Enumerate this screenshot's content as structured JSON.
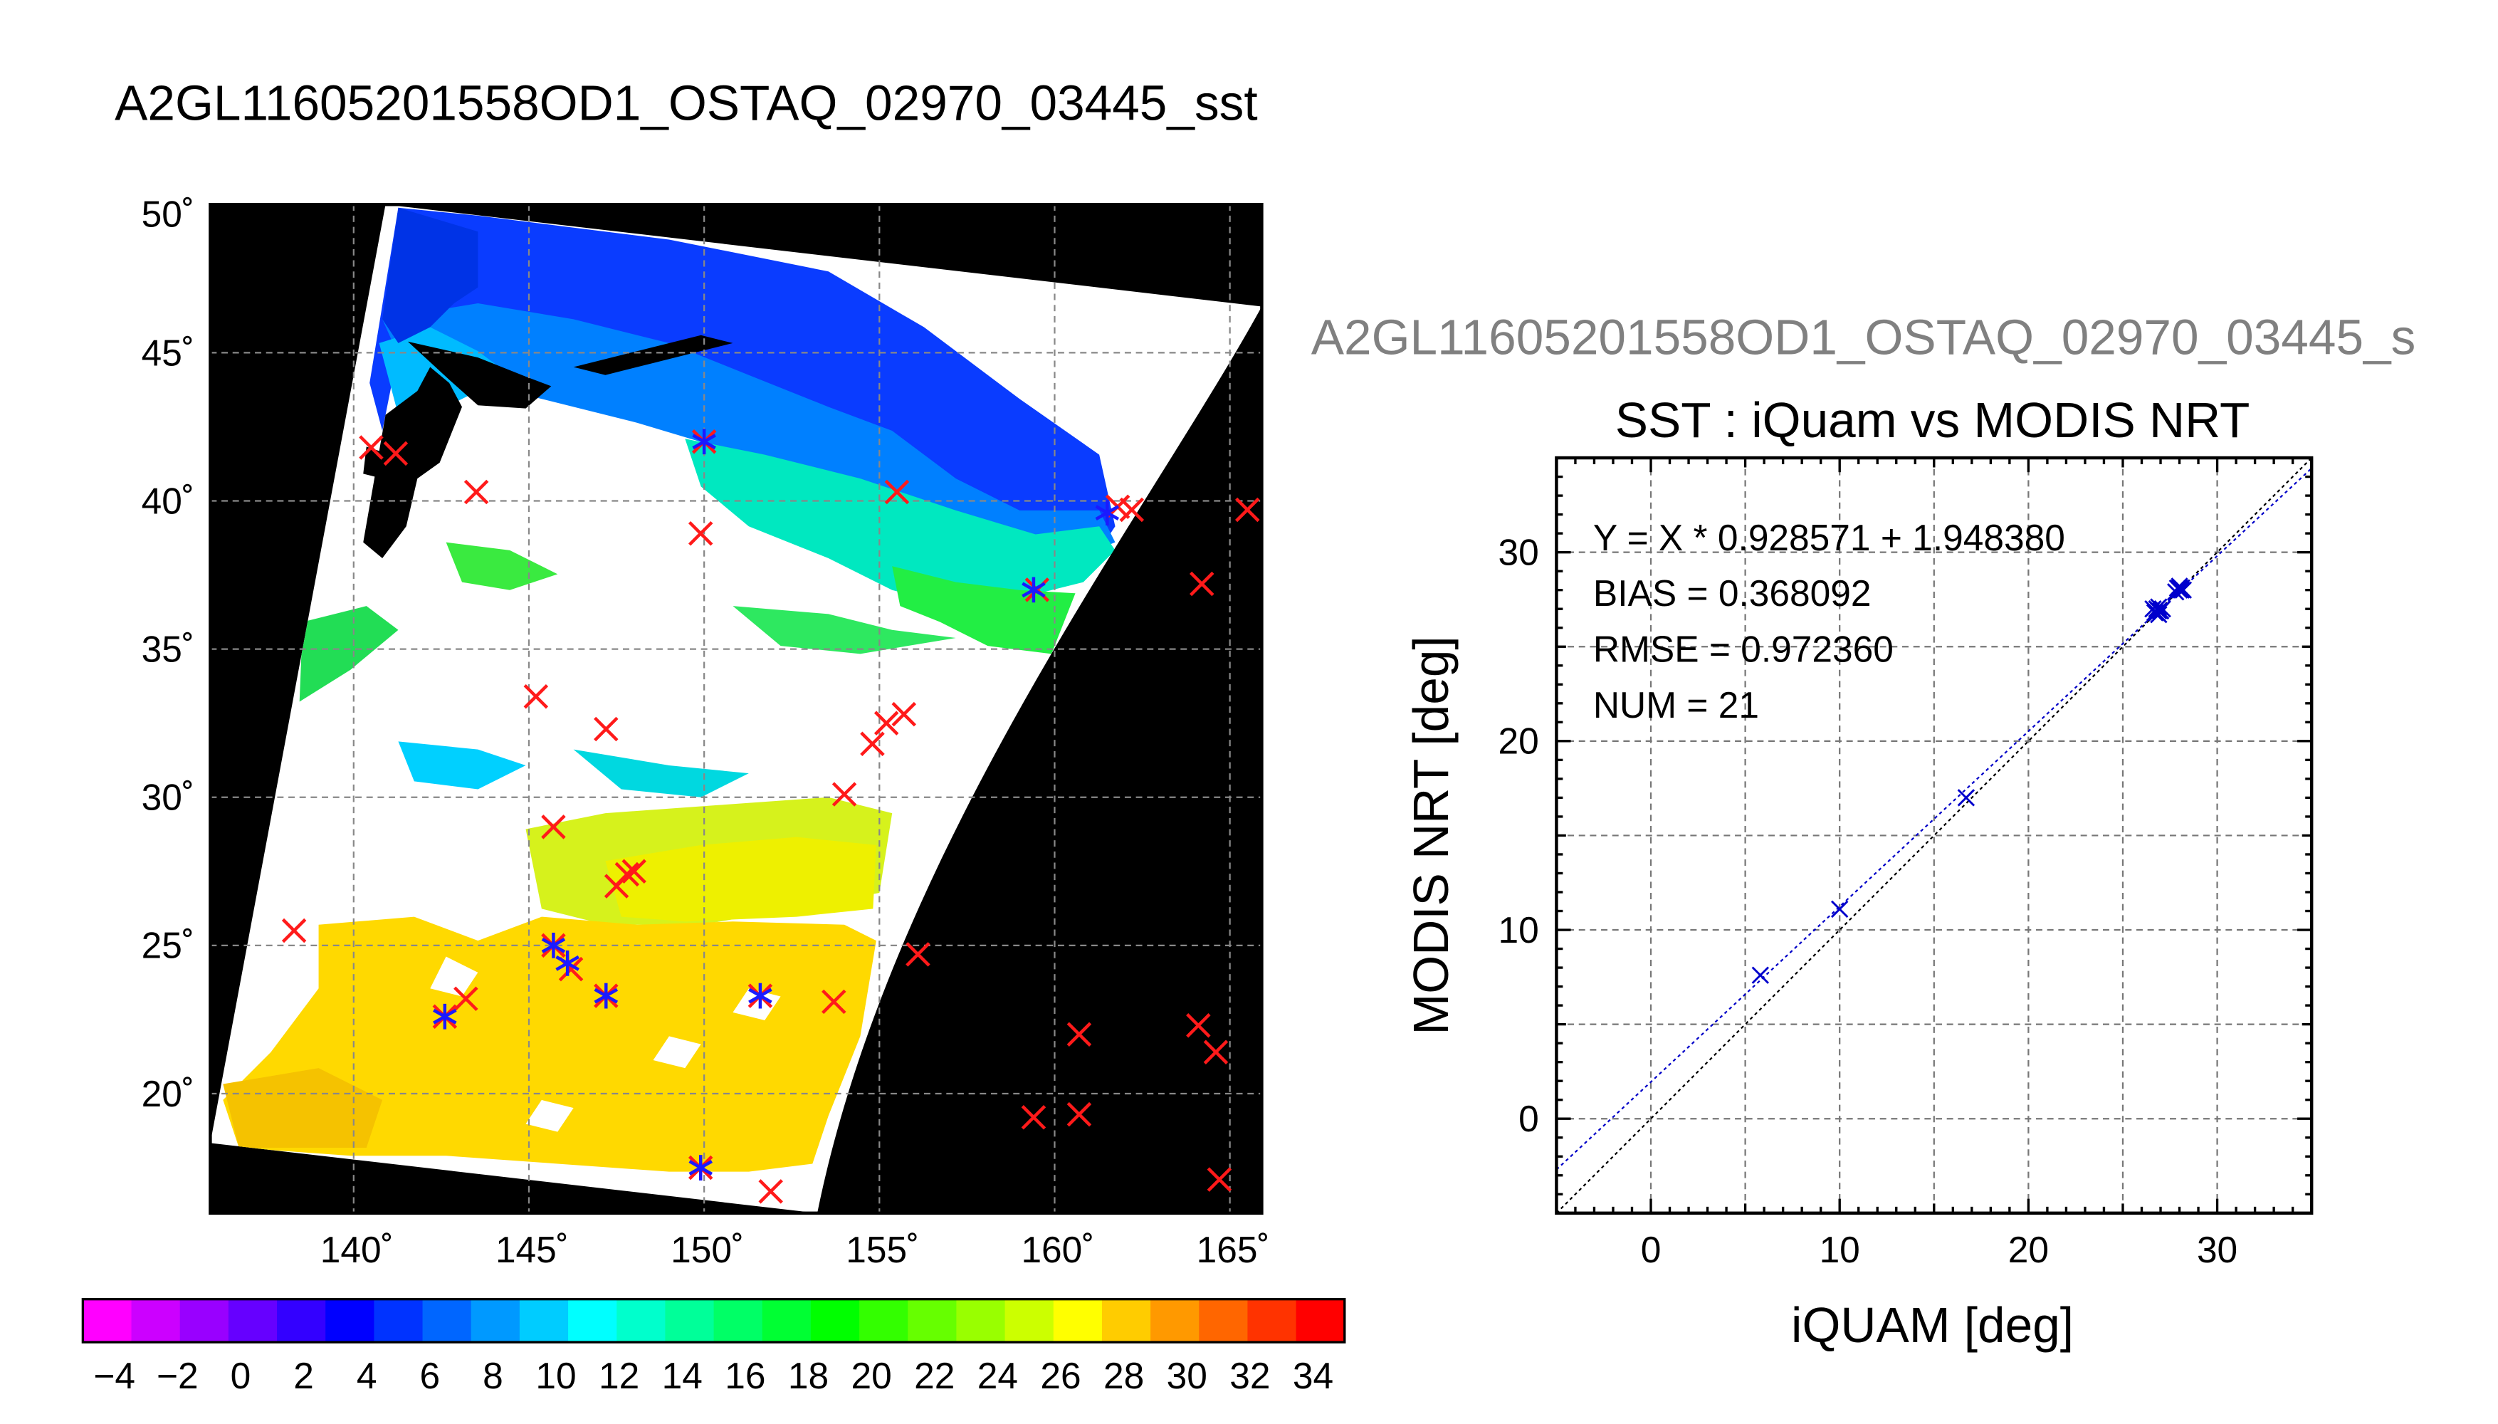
{
  "figure": {
    "main_title": "A2GL11605201558OD1_OSTAQ_02970_03445_sst",
    "overlay_title": "A2GL11605201558OD1_OSTAQ_02970_03445_s"
  },
  "chart_data": [
    {
      "type": "map",
      "title": "A2GL11605201558OD1_OSTAQ_02970_03445_sst",
      "lon_ticks": [
        "140˚",
        "145˚",
        "150˚",
        "155˚",
        "160˚",
        "165˚"
      ],
      "lat_ticks": [
        "20˚",
        "25˚",
        "30˚",
        "35˚",
        "40˚",
        "45˚",
        "50˚"
      ],
      "xlim": [
        136,
        166
      ],
      "ylim": [
        16,
        50
      ],
      "grid": true,
      "colorbar": {
        "min": -5,
        "max": 35,
        "step": 2,
        "tick_labels": [
          "−4",
          "−2",
          "0",
          "2",
          "4",
          "6",
          "8",
          "10",
          "12",
          "14",
          "16",
          "18",
          "20",
          "22",
          "24",
          "26",
          "28",
          "30",
          "32",
          "34"
        ],
        "colors": [
          "#ff00ff",
          "#cc00ff",
          "#9900ff",
          "#6600ff",
          "#3300ff",
          "#0000ff",
          "#0033ff",
          "#0066ff",
          "#0099ff",
          "#00ccff",
          "#00ffff",
          "#00ffcc",
          "#00ff99",
          "#00ff66",
          "#00ff33",
          "#00ff00",
          "#33ff00",
          "#66ff00",
          "#99ff00",
          "#ccff00",
          "#ffff00",
          "#ffcc00",
          "#ff9900",
          "#ff6600",
          "#ff3300",
          "#ff0000"
        ]
      },
      "markers_red": [
        [
          140.5,
          41.8
        ],
        [
          141.2,
          41.6
        ],
        [
          143.5,
          40.3
        ],
        [
          150,
          42
        ],
        [
          149.9,
          38.9
        ],
        [
          155.5,
          40.3
        ],
        [
          161.8,
          39.8
        ],
        [
          162.2,
          39.7
        ],
        [
          165.5,
          39.7
        ],
        [
          164.2,
          37.2
        ],
        [
          159.5,
          37
        ],
        [
          145.2,
          33.4
        ],
        [
          147.2,
          32.3
        ],
        [
          155.2,
          32.5
        ],
        [
          155.7,
          32.8
        ],
        [
          154.8,
          31.8
        ],
        [
          154,
          30.1
        ],
        [
          145.7,
          29
        ],
        [
          147.5,
          27
        ],
        [
          147.8,
          27.4
        ],
        [
          148,
          27.5
        ],
        [
          138.3,
          25.5
        ],
        [
          145.7,
          25
        ],
        [
          146.2,
          24.2
        ],
        [
          156.1,
          24.7
        ],
        [
          143.2,
          23.2
        ],
        [
          142.6,
          22.6
        ],
        [
          147.2,
          23.3
        ],
        [
          151.6,
          23.3
        ],
        [
          153.7,
          23.1
        ],
        [
          160.7,
          22
        ],
        [
          164.1,
          22.3
        ],
        [
          164.6,
          21.4
        ],
        [
          159.4,
          19.2
        ],
        [
          160.7,
          19.3
        ],
        [
          149.9,
          17.5
        ],
        [
          151.9,
          16.7
        ],
        [
          164.7,
          17.1
        ]
      ],
      "markers_blue": [
        [
          150,
          42
        ],
        [
          161.5,
          39.6
        ],
        [
          159.4,
          37
        ],
        [
          145.7,
          25
        ],
        [
          146.1,
          24.4
        ],
        [
          142.6,
          22.6
        ],
        [
          147.2,
          23.3
        ],
        [
          151.6,
          23.3
        ],
        [
          149.9,
          17.5
        ]
      ]
    },
    {
      "type": "scatter",
      "title": "SST : iQuam vs MODIS NRT",
      "xlabel": "iQUAM [deg]",
      "ylabel": "MODIS NRT [deg]",
      "xlim": [
        -5,
        35
      ],
      "ylim": [
        -5,
        35
      ],
      "xticks": [
        0,
        10,
        20,
        30
      ],
      "yticks": [
        0,
        10,
        20,
        30
      ],
      "grid": true,
      "annotations": [
        "Y = X * 0.928571 + 1.948380",
        "BIAS = 0.368092",
        "RMSE = 0.972360",
        "NUM = 21"
      ],
      "points": [
        [
          5.8,
          7.6
        ],
        [
          10,
          11.1
        ],
        [
          16.7,
          17
        ],
        [
          26.6,
          27
        ],
        [
          26.8,
          26.8
        ],
        [
          26.9,
          27.1
        ],
        [
          27.0,
          26.9
        ],
        [
          26.7,
          26.8
        ],
        [
          26.9,
          26.7
        ],
        [
          27.1,
          27.0
        ],
        [
          27.9,
          28.1
        ],
        [
          28.1,
          28.0
        ],
        [
          28.0,
          28.2
        ],
        [
          27.8,
          27.9
        ],
        [
          28.2,
          28.0
        ],
        [
          28.0,
          28.1
        ],
        [
          26.8,
          27.0
        ],
        [
          27.0,
          26.9
        ],
        [
          28.0,
          28.0
        ],
        [
          26.9,
          26.9
        ],
        [
          28.1,
          28.1
        ]
      ],
      "fit_line": {
        "slope": 0.928571,
        "intercept": 1.94838
      },
      "reference_line": {
        "slope": 1,
        "intercept": 0
      }
    }
  ]
}
